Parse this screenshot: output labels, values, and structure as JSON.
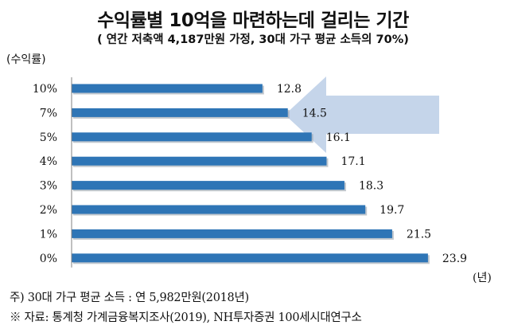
{
  "title": "수익률별 10억을 마련하는데 걸리는 기간",
  "subtitle": "( 연간 저축액 4,187만원 가정, 30대 가구 평균 소득의 70%)",
  "ylabel": "(수익률)",
  "xunit": "(년)",
  "footnote": "주) 30대 가구 평균 소득 : 연 5,982만원(2018년)",
  "source": "※ 자료: 통계청 가계금융복지조사(2019), NH투자증권 100세시대연구소",
  "colors": {
    "bar": "#2e75b6",
    "bar_shadow": "#9aa3ad",
    "arrow": "#c5d5ea"
  },
  "icons": {
    "arrow": "left-arrow-icon"
  },
  "chart_data": {
    "type": "bar",
    "orientation": "horizontal",
    "categories": [
      "10%",
      "7%",
      "5%",
      "4%",
      "3%",
      "2%",
      "1%",
      "0%"
    ],
    "values": [
      12.8,
      14.5,
      16.1,
      17.1,
      18.3,
      19.7,
      21.5,
      23.9
    ],
    "xlim": [
      0,
      25.4
    ],
    "grid": false,
    "legend": "none"
  }
}
